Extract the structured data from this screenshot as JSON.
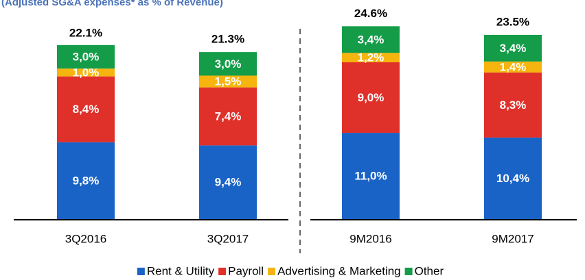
{
  "chart_data": {
    "type": "stacked_bar",
    "title": "(Adjusted SG&A expenses* as % of Revenue)",
    "categories": [
      "3Q2016",
      "3Q2017",
      "9M2016",
      "9M2017"
    ],
    "series": [
      {
        "name": "Rent & Utility",
        "color": "#1a63c6",
        "values": [
          9.8,
          9.4,
          11.0,
          10.4
        ],
        "value_labels": [
          "9,8%",
          "9,4%",
          "11,0%",
          "10,4%"
        ]
      },
      {
        "name": "Payroll",
        "color": "#e0302a",
        "values": [
          8.4,
          7.4,
          9.0,
          8.3
        ],
        "value_labels": [
          "8,4%",
          "7,4%",
          "9,0%",
          "8,3%"
        ]
      },
      {
        "name": "Advertising & Marketing",
        "color": "#f6b40e",
        "values": [
          1.0,
          1.5,
          1.2,
          1.4
        ],
        "value_labels": [
          "1,0%",
          "1,5%",
          "1,2%",
          "1,4%"
        ]
      },
      {
        "name": "Other",
        "color": "#149c48",
        "values": [
          3.0,
          3.0,
          3.4,
          3.4
        ],
        "value_labels": [
          "3,0%",
          "3,0%",
          "3,4%",
          "3,4%"
        ]
      }
    ],
    "totals": [
      22.1,
      21.3,
      24.6,
      23.5
    ],
    "total_labels": [
      "22.1%",
      "21.3%",
      "24.6%",
      "23.5%"
    ]
  }
}
